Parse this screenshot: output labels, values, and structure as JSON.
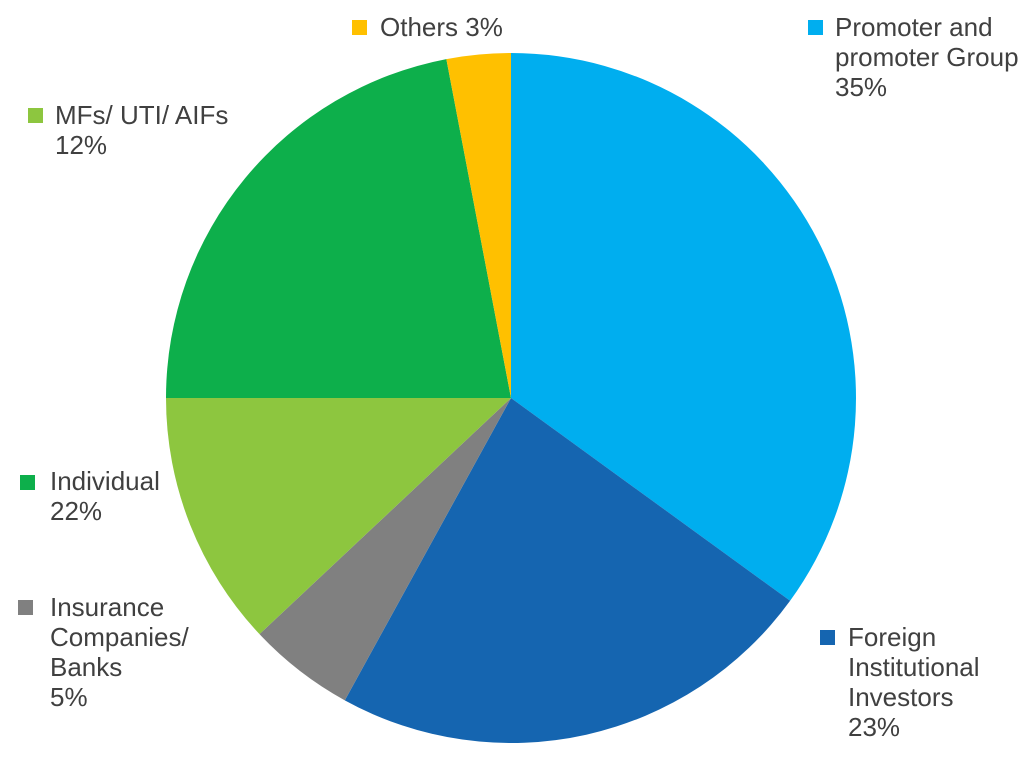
{
  "chart_data": {
    "type": "pie",
    "categories": [
      "Promoter and promoter Group",
      "Foreign Institutional Investors",
      "Insurance Companies/ Banks",
      "MFs/ UTI/ AIFs",
      "Individual",
      "Others"
    ],
    "values": [
      35,
      23,
      5,
      12,
      22,
      3
    ],
    "value_labels": [
      "35%",
      "23%",
      "5%",
      "12%",
      "22%",
      "3%"
    ],
    "colors": [
      "#00aeef",
      "#1565b0",
      "#808080",
      "#8dc63f",
      "#0daf4b",
      "#ffc000"
    ]
  }
}
